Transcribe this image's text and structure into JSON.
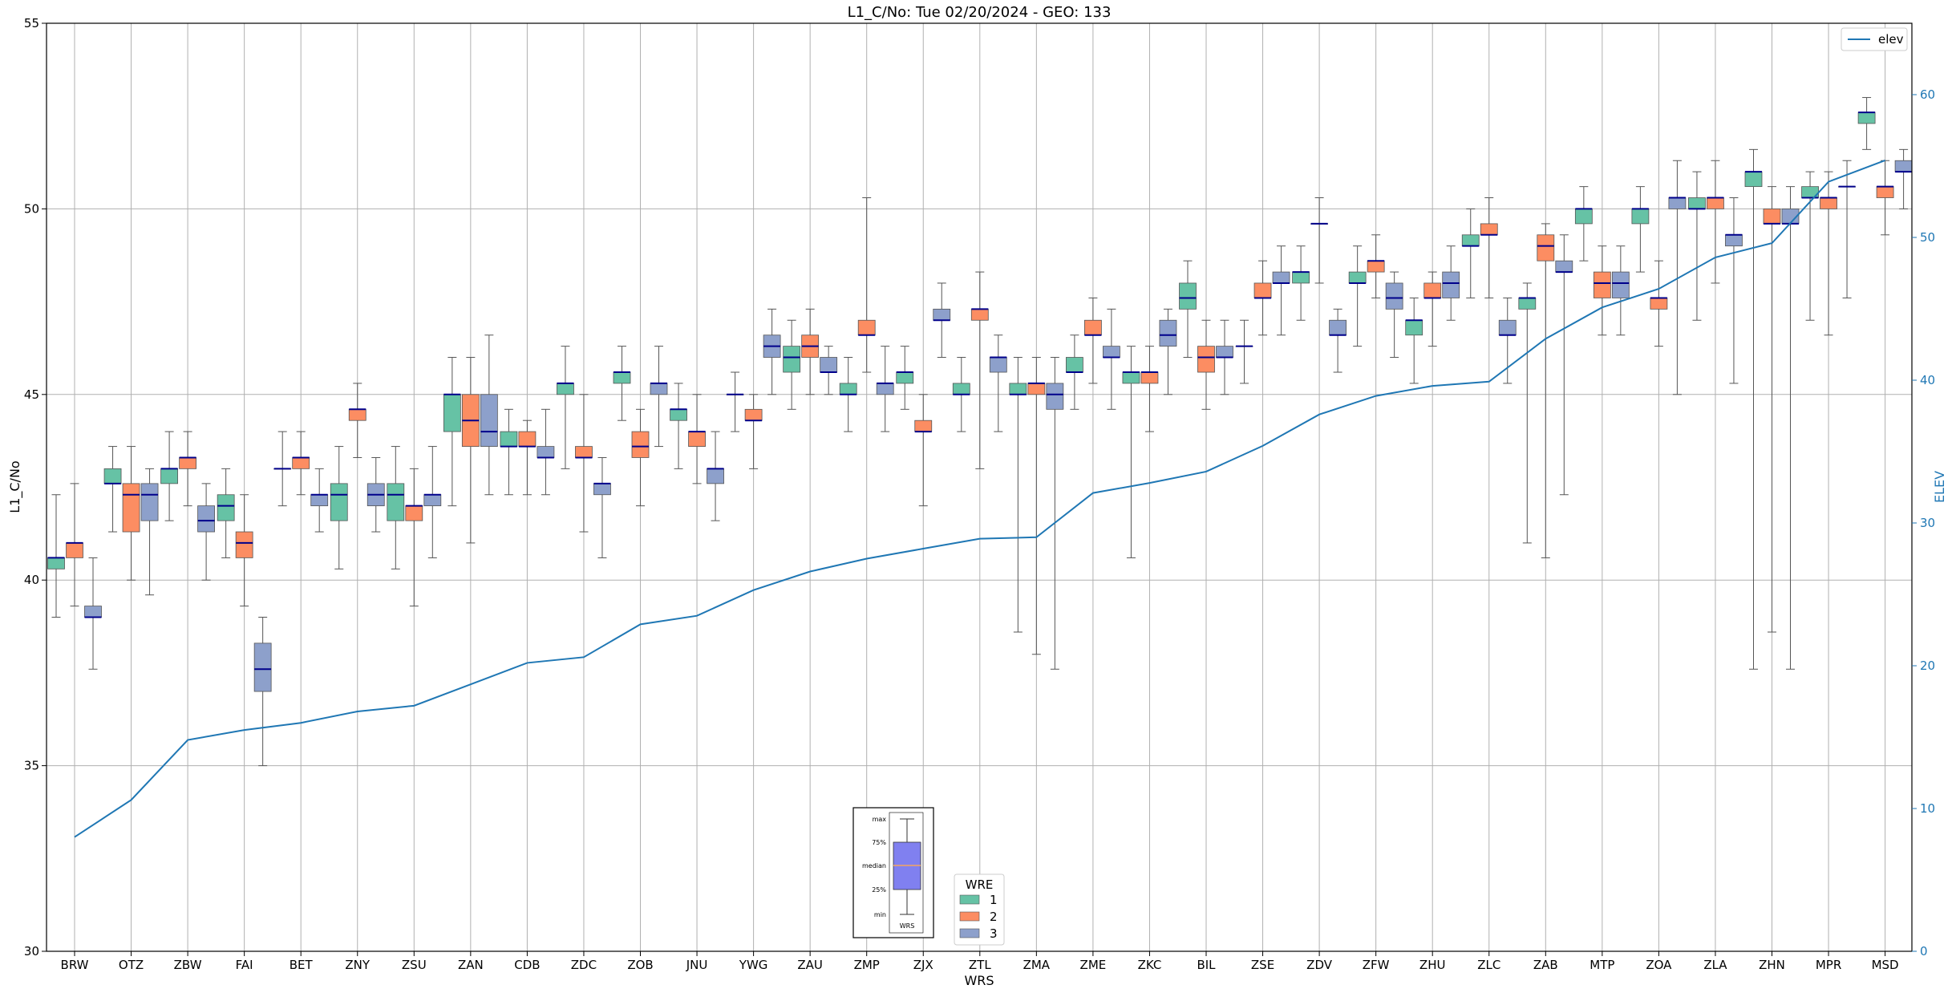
{
  "chart_data": {
    "type": "box",
    "title": "L1_C/No: Tue 02/20/2024 - GEO: 133",
    "xlabel": "WRS",
    "ylabel": "L1_C/No",
    "y2label": "ELEV",
    "ylim": [
      30,
      55
    ],
    "y2lim": [
      0,
      65
    ],
    "yticks": [
      "30",
      "35",
      "40",
      "45",
      "50",
      "55"
    ],
    "y2ticks": [
      "0",
      "10",
      "20",
      "30",
      "40",
      "50",
      "60"
    ],
    "grid": true,
    "categories": [
      "BRW",
      "OTZ",
      "ZBW",
      "FAI",
      "BET",
      "ZNY",
      "ZSU",
      "ZAN",
      "CDB",
      "ZDC",
      "ZOB",
      "JNU",
      "YWG",
      "ZAU",
      "ZMP",
      "ZJX",
      "ZTL",
      "ZMA",
      "ZME",
      "ZKC",
      "BIL",
      "ZSE",
      "ZDV",
      "ZFW",
      "ZHU",
      "ZLC",
      "ZAB",
      "MTP",
      "ZOA",
      "ZLA",
      "ZHN",
      "MPR",
      "MSD"
    ],
    "series": [
      {
        "name": "1",
        "color": "#66c2a5",
        "boxes": [
          {
            "min": 39.0,
            "q1": 40.3,
            "median": 40.6,
            "q3": 40.6,
            "max": 42.3
          },
          {
            "min": 41.3,
            "q1": 42.6,
            "median": 42.6,
            "q3": 43.0,
            "max": 43.6
          },
          {
            "min": 41.6,
            "q1": 42.6,
            "median": 43.0,
            "q3": 43.0,
            "max": 44.0
          },
          {
            "min": 40.6,
            "q1": 41.6,
            "median": 42.0,
            "q3": 42.3,
            "max": 43.0
          },
          {
            "min": 42.0,
            "q1": 43.0,
            "median": 43.0,
            "q3": 43.0,
            "max": 44.0
          },
          {
            "min": 40.3,
            "q1": 41.6,
            "median": 42.3,
            "q3": 42.6,
            "max": 43.6
          },
          {
            "min": 40.3,
            "q1": 41.6,
            "median": 42.3,
            "q3": 42.6,
            "max": 43.6
          },
          {
            "min": 42.0,
            "q1": 44.0,
            "median": 45.0,
            "q3": 45.0,
            "max": 46.0
          },
          {
            "min": 42.3,
            "q1": 43.6,
            "median": 43.6,
            "q3": 44.0,
            "max": 44.6
          },
          {
            "min": 43.0,
            "q1": 45.0,
            "median": 45.3,
            "q3": 45.3,
            "max": 46.3
          },
          {
            "min": 44.3,
            "q1": 45.3,
            "median": 45.6,
            "q3": 45.6,
            "max": 46.3
          },
          {
            "min": 43.0,
            "q1": 44.3,
            "median": 44.6,
            "q3": 44.6,
            "max": 45.3
          },
          {
            "min": 44.0,
            "q1": 45.0,
            "median": 45.0,
            "q3": 45.0,
            "max": 45.6
          },
          {
            "min": 44.6,
            "q1": 45.6,
            "median": 46.0,
            "q3": 46.3,
            "max": 47.0
          },
          {
            "min": 44.0,
            "q1": 45.0,
            "median": 45.0,
            "q3": 45.3,
            "max": 46.0
          },
          {
            "min": 44.6,
            "q1": 45.3,
            "median": 45.6,
            "q3": 45.6,
            "max": 46.3
          },
          {
            "min": 44.0,
            "q1": 45.0,
            "median": 45.0,
            "q3": 45.3,
            "max": 46.0
          },
          {
            "min": 38.6,
            "q1": 45.0,
            "median": 45.0,
            "q3": 45.3,
            "max": 46.0
          },
          {
            "min": 44.6,
            "q1": 45.6,
            "median": 45.6,
            "q3": 46.0,
            "max": 46.6
          },
          {
            "min": 40.6,
            "q1": 45.3,
            "median": 45.6,
            "q3": 45.6,
            "max": 46.3
          },
          {
            "min": 46.0,
            "q1": 47.3,
            "median": 47.6,
            "q3": 48.0,
            "max": 48.6
          },
          {
            "min": 45.3,
            "q1": 46.3,
            "median": 46.3,
            "q3": 46.3,
            "max": 47.0
          },
          {
            "min": 47.0,
            "q1": 48.0,
            "median": 48.3,
            "q3": 48.3,
            "max": 49.0
          },
          {
            "min": 46.3,
            "q1": 48.0,
            "median": 48.0,
            "q3": 48.3,
            "max": 49.0
          },
          {
            "min": 45.3,
            "q1": 46.6,
            "median": 47.0,
            "q3": 47.0,
            "max": 47.6
          },
          {
            "min": 47.6,
            "q1": 49.0,
            "median": 49.0,
            "q3": 49.3,
            "max": 50.0
          },
          {
            "min": 41.0,
            "q1": 47.3,
            "median": 47.6,
            "q3": 47.6,
            "max": 48.0
          },
          {
            "min": 48.6,
            "q1": 49.6,
            "median": 50.0,
            "q3": 50.0,
            "max": 50.6
          },
          {
            "min": 48.3,
            "q1": 49.6,
            "median": 50.0,
            "q3": 50.0,
            "max": 50.6
          },
          {
            "min": 47.0,
            "q1": 50.0,
            "median": 50.0,
            "q3": 50.3,
            "max": 51.0
          },
          {
            "min": 37.6,
            "q1": 50.6,
            "median": 51.0,
            "q3": 51.0,
            "max": 51.6
          },
          {
            "min": 47.0,
            "q1": 50.3,
            "median": 50.3,
            "q3": 50.6,
            "max": 51.0
          },
          {
            "min": 51.6,
            "q1": 52.3,
            "median": 52.6,
            "q3": 52.6,
            "max": 53.0
          }
        ]
      },
      {
        "name": "2",
        "color": "#fc8d62",
        "boxes": [
          {
            "min": 39.3,
            "q1": 40.6,
            "median": 41.0,
            "q3": 41.0,
            "max": 42.6
          },
          {
            "min": 40.0,
            "q1": 41.3,
            "median": 42.3,
            "q3": 42.6,
            "max": 43.6
          },
          {
            "min": 42.0,
            "q1": 43.0,
            "median": 43.3,
            "q3": 43.3,
            "max": 44.0
          },
          {
            "min": 39.3,
            "q1": 40.6,
            "median": 41.0,
            "q3": 41.3,
            "max": 42.3
          },
          {
            "min": 42.3,
            "q1": 43.0,
            "median": 43.3,
            "q3": 43.3,
            "max": 44.0
          },
          {
            "min": 43.3,
            "q1": 44.3,
            "median": 44.6,
            "q3": 44.6,
            "max": 45.3
          },
          {
            "min": 39.3,
            "q1": 41.6,
            "median": 42.0,
            "q3": 42.0,
            "max": 43.0
          },
          {
            "min": 41.0,
            "q1": 43.6,
            "median": 44.3,
            "q3": 45.0,
            "max": 46.0
          },
          {
            "min": 42.3,
            "q1": 43.6,
            "median": 43.6,
            "q3": 44.0,
            "max": 44.3
          },
          {
            "min": 41.3,
            "q1": 43.3,
            "median": 43.3,
            "q3": 43.6,
            "max": 45.0
          },
          {
            "min": 42.0,
            "q1": 43.3,
            "median": 43.6,
            "q3": 44.0,
            "max": 44.6
          },
          {
            "min": 42.6,
            "q1": 43.6,
            "median": 44.0,
            "q3": 44.0,
            "max": 45.0
          },
          {
            "min": 43.0,
            "q1": 44.3,
            "median": 44.3,
            "q3": 44.6,
            "max": 45.0
          },
          {
            "min": 45.0,
            "q1": 46.0,
            "median": 46.3,
            "q3": 46.6,
            "max": 47.3
          },
          {
            "min": 45.6,
            "q1": 46.6,
            "median": 46.6,
            "q3": 47.0,
            "max": 50.3
          },
          {
            "min": 42.0,
            "q1": 44.0,
            "median": 44.0,
            "q3": 44.3,
            "max": 45.0
          },
          {
            "min": 43.0,
            "q1": 47.0,
            "median": 47.3,
            "q3": 47.3,
            "max": 48.3
          },
          {
            "min": 38.0,
            "q1": 45.0,
            "median": 45.3,
            "q3": 45.3,
            "max": 46.0
          },
          {
            "min": 45.3,
            "q1": 46.6,
            "median": 46.6,
            "q3": 47.0,
            "max": 47.6
          },
          {
            "min": 44.0,
            "q1": 45.3,
            "median": 45.6,
            "q3": 45.6,
            "max": 46.3
          },
          {
            "min": 44.6,
            "q1": 45.6,
            "median": 46.0,
            "q3": 46.3,
            "max": 47.0
          },
          {
            "min": 46.6,
            "q1": 47.6,
            "median": 47.6,
            "q3": 48.0,
            "max": 48.6
          },
          {
            "min": 48.0,
            "q1": 49.6,
            "median": 49.6,
            "q3": 49.6,
            "max": 50.3
          },
          {
            "min": 47.6,
            "q1": 48.3,
            "median": 48.6,
            "q3": 48.6,
            "max": 49.3
          },
          {
            "min": 46.3,
            "q1": 47.6,
            "median": 47.6,
            "q3": 48.0,
            "max": 48.3
          },
          {
            "min": 47.6,
            "q1": 49.3,
            "median": 49.3,
            "q3": 49.6,
            "max": 50.3
          },
          {
            "min": 40.6,
            "q1": 48.6,
            "median": 49.0,
            "q3": 49.3,
            "max": 49.6
          },
          {
            "min": 46.6,
            "q1": 47.6,
            "median": 48.0,
            "q3": 48.3,
            "max": 49.0
          },
          {
            "min": 46.3,
            "q1": 47.3,
            "median": 47.6,
            "q3": 47.6,
            "max": 48.6
          },
          {
            "min": 48.0,
            "q1": 50.0,
            "median": 50.3,
            "q3": 50.3,
            "max": 51.3
          },
          {
            "min": 38.6,
            "q1": 49.6,
            "median": 49.6,
            "q3": 50.0,
            "max": 50.6
          },
          {
            "min": 46.6,
            "q1": 50.0,
            "median": 50.3,
            "q3": 50.3,
            "max": 51.0
          },
          {
            "min": 49.3,
            "q1": 50.3,
            "median": 50.6,
            "q3": 50.6,
            "max": 51.3
          }
        ]
      },
      {
        "name": "3",
        "color": "#8da0cb",
        "boxes": [
          {
            "min": 37.6,
            "q1": 39.0,
            "median": 39.0,
            "q3": 39.3,
            "max": 40.6
          },
          {
            "min": 39.6,
            "q1": 41.6,
            "median": 42.3,
            "q3": 42.6,
            "max": 43.0
          },
          {
            "min": 40.0,
            "q1": 41.3,
            "median": 41.6,
            "q3": 42.0,
            "max": 42.6
          },
          {
            "min": 35.0,
            "q1": 37.0,
            "median": 37.6,
            "q3": 38.3,
            "max": 39.0
          },
          {
            "min": 41.3,
            "q1": 42.0,
            "median": 42.3,
            "q3": 42.3,
            "max": 43.0
          },
          {
            "min": 41.3,
            "q1": 42.0,
            "median": 42.3,
            "q3": 42.6,
            "max": 43.3
          },
          {
            "min": 40.6,
            "q1": 42.0,
            "median": 42.3,
            "q3": 42.3,
            "max": 43.6
          },
          {
            "min": 42.3,
            "q1": 43.6,
            "median": 44.0,
            "q3": 45.0,
            "max": 46.6
          },
          {
            "min": 42.3,
            "q1": 43.3,
            "median": 43.3,
            "q3": 43.6,
            "max": 44.6
          },
          {
            "min": 40.6,
            "q1": 42.3,
            "median": 42.6,
            "q3": 42.6,
            "max": 43.3
          },
          {
            "min": 43.6,
            "q1": 45.0,
            "median": 45.3,
            "q3": 45.3,
            "max": 46.3
          },
          {
            "min": 41.6,
            "q1": 42.6,
            "median": 43.0,
            "q3": 43.0,
            "max": 44.0
          },
          {
            "min": 45.0,
            "q1": 46.0,
            "median": 46.3,
            "q3": 46.6,
            "max": 47.3
          },
          {
            "min": 45.0,
            "q1": 45.6,
            "median": 45.6,
            "q3": 46.0,
            "max": 46.3
          },
          {
            "min": 44.0,
            "q1": 45.0,
            "median": 45.3,
            "q3": 45.3,
            "max": 46.3
          },
          {
            "min": 46.0,
            "q1": 47.0,
            "median": 47.0,
            "q3": 47.3,
            "max": 48.0
          },
          {
            "min": 44.0,
            "q1": 45.6,
            "median": 46.0,
            "q3": 46.0,
            "max": 46.6
          },
          {
            "min": 37.6,
            "q1": 44.6,
            "median": 45.0,
            "q3": 45.3,
            "max": 46.0
          },
          {
            "min": 44.6,
            "q1": 46.0,
            "median": 46.0,
            "q3": 46.3,
            "max": 47.3
          },
          {
            "min": 45.0,
            "q1": 46.3,
            "median": 46.6,
            "q3": 47.0,
            "max": 47.3
          },
          {
            "min": 45.0,
            "q1": 46.0,
            "median": 46.0,
            "q3": 46.3,
            "max": 47.0
          },
          {
            "min": 46.6,
            "q1": 48.0,
            "median": 48.0,
            "q3": 48.3,
            "max": 49.0
          },
          {
            "min": 45.6,
            "q1": 46.6,
            "median": 46.6,
            "q3": 47.0,
            "max": 47.3
          },
          {
            "min": 46.0,
            "q1": 47.3,
            "median": 47.6,
            "q3": 48.0,
            "max": 48.3
          },
          {
            "min": 47.0,
            "q1": 47.6,
            "median": 48.0,
            "q3": 48.3,
            "max": 49.0
          },
          {
            "min": 45.3,
            "q1": 46.6,
            "median": 46.6,
            "q3": 47.0,
            "max": 47.6
          },
          {
            "min": 42.3,
            "q1": 48.3,
            "median": 48.3,
            "q3": 48.6,
            "max": 49.3
          },
          {
            "min": 46.6,
            "q1": 47.6,
            "median": 48.0,
            "q3": 48.3,
            "max": 49.0
          },
          {
            "min": 45.0,
            "q1": 50.0,
            "median": 50.3,
            "q3": 50.3,
            "max": 51.3
          },
          {
            "min": 45.3,
            "q1": 49.0,
            "median": 49.3,
            "q3": 49.3,
            "max": 50.3
          },
          {
            "min": 37.6,
            "q1": 49.6,
            "median": 49.6,
            "q3": 50.0,
            "max": 50.6
          },
          {
            "min": 47.6,
            "q1": 50.6,
            "median": 50.6,
            "q3": 50.6,
            "max": 51.3
          },
          {
            "min": 50.0,
            "q1": 51.0,
            "median": 51.0,
            "q3": 51.3,
            "max": 51.6
          }
        ]
      }
    ],
    "line": {
      "name": "elev",
      "color": "#1f77b4",
      "axis": "right",
      "values": [
        8.0,
        10.6,
        14.8,
        15.5,
        16.0,
        16.8,
        17.2,
        18.7,
        20.2,
        20.6,
        22.9,
        23.5,
        25.3,
        26.6,
        27.5,
        28.2,
        28.9,
        29.0,
        32.1,
        32.8,
        33.6,
        35.4,
        37.6,
        38.9,
        39.6,
        39.9,
        42.9,
        45.1,
        46.4,
        48.6,
        49.6,
        53.9,
        55.4
      ]
    },
    "legends": {
      "line_legend": {
        "label": "elev",
        "placement": "upper right"
      },
      "box_legend": {
        "title": "WRE",
        "labels": [
          "1",
          "2",
          "3"
        ],
        "placement": "lower center"
      }
    },
    "inset_key": {
      "labels": [
        "max",
        "75%",
        "median",
        "25%",
        "min"
      ],
      "xlabel": "WRS",
      "box_color": "#8080f0"
    },
    "median_color": "#00008b",
    "grid_color": "#b0b0b0"
  }
}
